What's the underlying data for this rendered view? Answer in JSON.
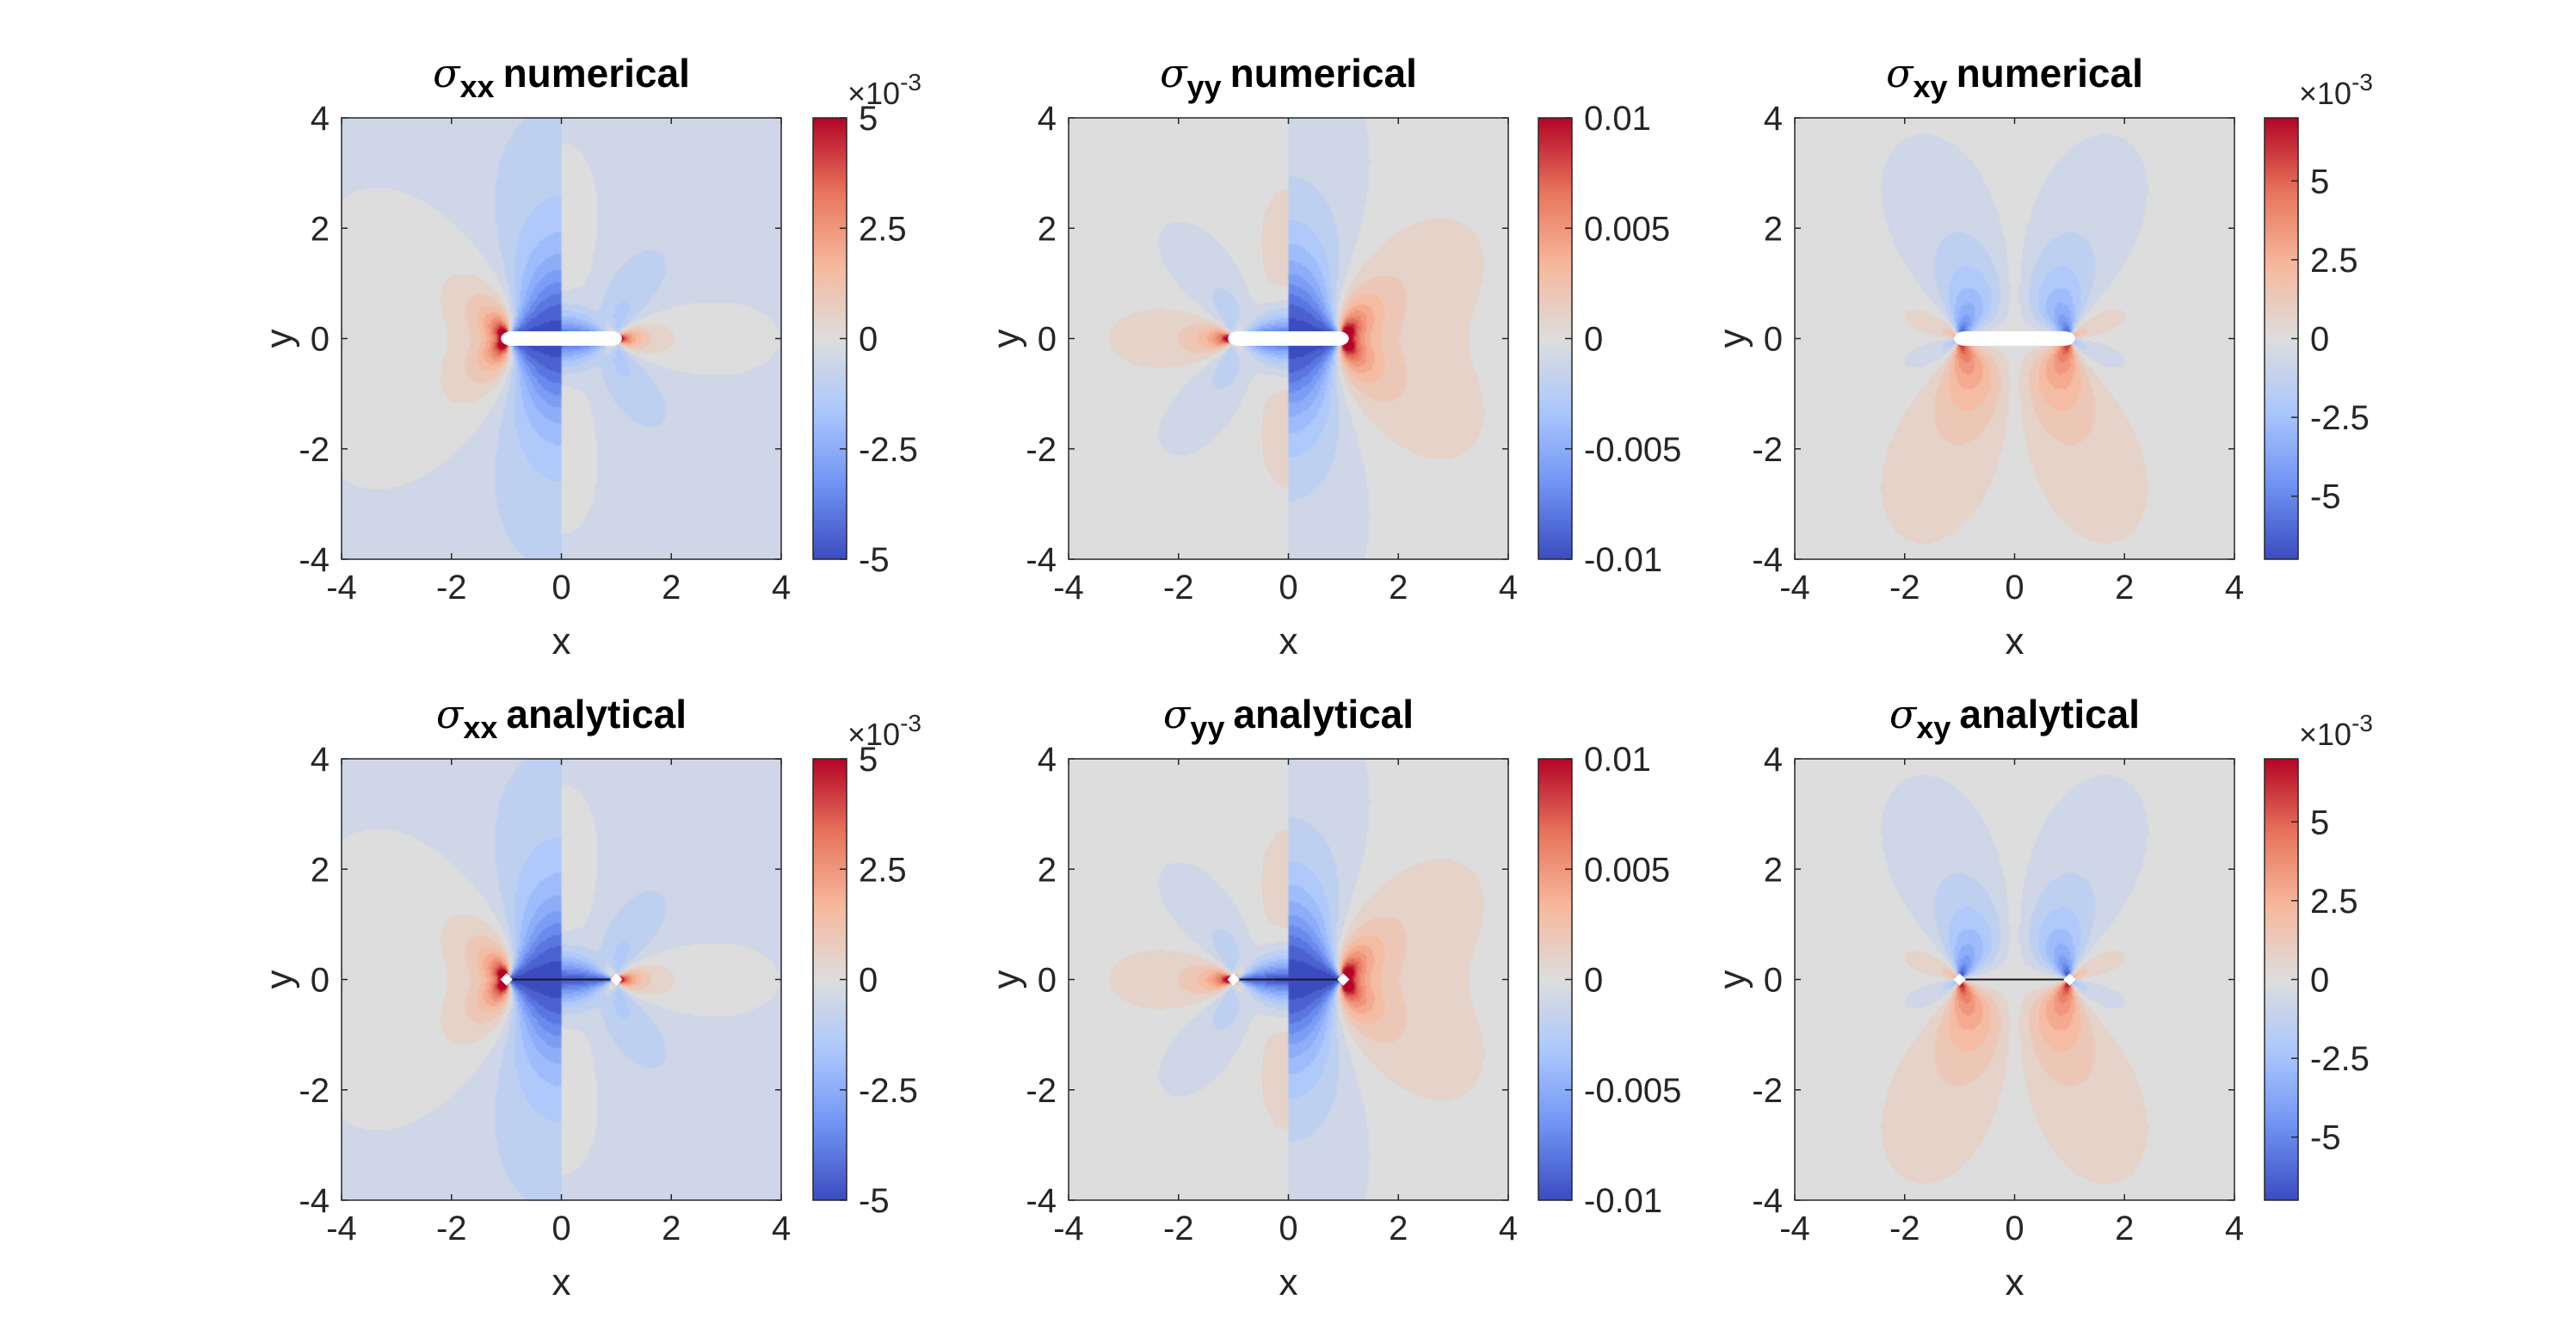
{
  "figure": {
    "colormap": [
      "#3b4cc0",
      "#6f92f3",
      "#aac7fd",
      "#dddddd",
      "#f7b89c",
      "#e7745b",
      "#b40426"
    ],
    "chart_data": [
      {
        "type": "heatmap",
        "title_symbol": "σ",
        "title_sub": "xx",
        "title_word": "numerical",
        "xlabel": "x",
        "ylabel": "y",
        "xlim": [
          -4,
          4
        ],
        "ylim": [
          -4,
          4
        ],
        "xticks": [
          "-4",
          "-2",
          "0",
          "2",
          "4"
        ],
        "yticks": [
          "4",
          "2",
          "0",
          "-2",
          "-4"
        ],
        "field": "sxx",
        "clim": [
          -0.005,
          0.005
        ],
        "colorbar_ticks": [
          "5",
          "2.5",
          "0",
          "-2.5",
          "-5"
        ],
        "colorbar_exponent": "×10-3",
        "crack": "slot"
      },
      {
        "type": "heatmap",
        "title_symbol": "σ",
        "title_sub": "yy",
        "title_word": "numerical",
        "xlabel": "x",
        "ylabel": "y",
        "xlim": [
          -4,
          4
        ],
        "ylim": [
          -4,
          4
        ],
        "xticks": [
          "-4",
          "-2",
          "0",
          "2",
          "4"
        ],
        "yticks": [
          "4",
          "2",
          "0",
          "-2",
          "-4"
        ],
        "field": "syy",
        "clim": [
          -0.01,
          0.01
        ],
        "colorbar_ticks": [
          "0.01",
          "0.005",
          "0",
          "-0.005",
          "-0.01"
        ],
        "colorbar_exponent": "",
        "crack": "slot"
      },
      {
        "type": "heatmap",
        "title_symbol": "σ",
        "title_sub": "xy",
        "title_word": "numerical",
        "xlabel": "x",
        "ylabel": "y",
        "xlim": [
          -4,
          4
        ],
        "ylim": [
          -4,
          4
        ],
        "xticks": [
          "-4",
          "-2",
          "0",
          "2",
          "4"
        ],
        "yticks": [
          "4",
          "2",
          "0",
          "-2",
          "-4"
        ],
        "field": "sxy",
        "clim": [
          -0.007,
          0.007
        ],
        "colorbar_ticks": [
          "5",
          "2.5",
          "0",
          "-2.5",
          "-5"
        ],
        "colorbar_tick_values": [
          0.005,
          0.0025,
          0,
          -0.0025,
          -0.005
        ],
        "colorbar_exponent": "×10-3",
        "crack": "slot"
      },
      {
        "type": "heatmap",
        "title_symbol": "σ",
        "title_sub": "xx",
        "title_word": "analytical",
        "xlabel": "x",
        "ylabel": "y",
        "xlim": [
          -4,
          4
        ],
        "ylim": [
          -4,
          4
        ],
        "xticks": [
          "-4",
          "-2",
          "0",
          "2",
          "4"
        ],
        "yticks": [
          "4",
          "2",
          "0",
          "-2",
          "-4"
        ],
        "field": "sxx",
        "clim": [
          -0.005,
          0.005
        ],
        "colorbar_ticks": [
          "5",
          "2.5",
          "0",
          "-2.5",
          "-5"
        ],
        "colorbar_exponent": "×10-3",
        "crack": "tips"
      },
      {
        "type": "heatmap",
        "title_symbol": "σ",
        "title_sub": "yy",
        "title_word": "analytical",
        "xlabel": "x",
        "ylabel": "y",
        "xlim": [
          -4,
          4
        ],
        "ylim": [
          -4,
          4
        ],
        "xticks": [
          "-4",
          "-2",
          "0",
          "2",
          "4"
        ],
        "yticks": [
          "4",
          "2",
          "0",
          "-2",
          "-4"
        ],
        "field": "syy",
        "clim": [
          -0.01,
          0.01
        ],
        "colorbar_ticks": [
          "0.01",
          "0.005",
          "0",
          "-0.005",
          "-0.01"
        ],
        "colorbar_exponent": "",
        "crack": "tips"
      },
      {
        "type": "heatmap",
        "title_symbol": "σ",
        "title_sub": "xy",
        "title_word": "analytical",
        "xlabel": "x",
        "ylabel": "y",
        "xlim": [
          -4,
          4
        ],
        "ylim": [
          -4,
          4
        ],
        "xticks": [
          "-4",
          "-2",
          "0",
          "2",
          "4"
        ],
        "yticks": [
          "4",
          "2",
          "0",
          "-2",
          "-4"
        ],
        "field": "sxy",
        "clim": [
          -0.007,
          0.007
        ],
        "colorbar_ticks": [
          "5",
          "2.5",
          "0",
          "-2.5",
          "-5"
        ],
        "colorbar_tick_values": [
          0.005,
          0.0025,
          0,
          -0.0025,
          -0.005
        ],
        "colorbar_exponent": "×10-3",
        "crack": "tips"
      }
    ]
  }
}
